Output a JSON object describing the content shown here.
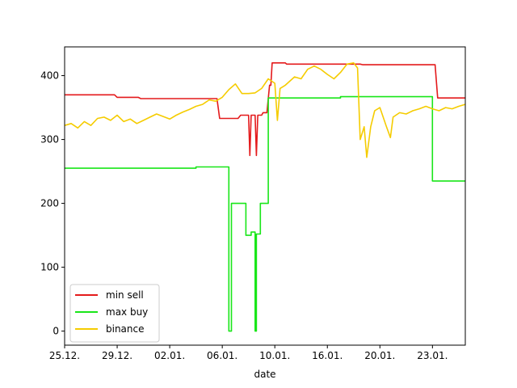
{
  "chart_data": {
    "type": "line",
    "title": "",
    "xlabel": "date",
    "ylabel": "",
    "x_ticks": [
      "25.12.",
      "29.12.",
      "02.01.",
      "06.01.",
      "10.01.",
      "16.01.",
      "20.01.",
      "23.01."
    ],
    "x_tick_values": [
      0,
      4,
      8,
      12,
      16,
      20,
      24,
      28
    ],
    "xlim": [
      0,
      30.5
    ],
    "y_ticks": [
      "0",
      "100",
      "200",
      "300",
      "400"
    ],
    "ylim": [
      -22,
      445
    ],
    "grid": false,
    "legend_position": "lower-left",
    "x_unit_note": "x values are days after 25.12.",
    "series": [
      {
        "name": "min sell",
        "color": "#e41a1c",
        "style": "step",
        "points": [
          [
            0,
            370
          ],
          [
            3.8,
            370
          ],
          [
            4.0,
            366
          ],
          [
            5.6,
            366
          ],
          [
            5.8,
            364
          ],
          [
            11.6,
            364
          ],
          [
            11.8,
            333
          ],
          [
            13.2,
            333
          ],
          [
            13.4,
            338
          ],
          [
            14.0,
            338
          ],
          [
            14.1,
            275
          ],
          [
            14.2,
            338
          ],
          [
            14.5,
            338
          ],
          [
            14.6,
            275
          ],
          [
            14.7,
            338
          ],
          [
            15.0,
            338
          ],
          [
            15.1,
            342
          ],
          [
            15.4,
            342
          ],
          [
            15.6,
            385
          ],
          [
            15.7,
            385
          ],
          [
            15.8,
            420
          ],
          [
            16.8,
            420
          ],
          [
            16.9,
            418
          ],
          [
            22.5,
            418
          ],
          [
            22.7,
            417
          ],
          [
            28.2,
            417
          ],
          [
            28.4,
            365
          ],
          [
            30.5,
            365
          ]
        ]
      },
      {
        "name": "max buy",
        "color": "#19e619",
        "style": "step",
        "points": [
          [
            0,
            255
          ],
          [
            10.0,
            255
          ],
          [
            10.0,
            257
          ],
          [
            12.5,
            257
          ],
          [
            12.5,
            0
          ],
          [
            12.7,
            0
          ],
          [
            12.7,
            200
          ],
          [
            13.8,
            200
          ],
          [
            13.8,
            150
          ],
          [
            14.2,
            150
          ],
          [
            14.2,
            155
          ],
          [
            14.5,
            155
          ],
          [
            14.5,
            0
          ],
          [
            14.6,
            0
          ],
          [
            14.6,
            152
          ],
          [
            14.9,
            152
          ],
          [
            14.9,
            200
          ],
          [
            15.5,
            200
          ],
          [
            15.5,
            365
          ],
          [
            21.0,
            365
          ],
          [
            21.0,
            367
          ],
          [
            28.0,
            367
          ],
          [
            28.0,
            235
          ],
          [
            30.5,
            235
          ]
        ]
      },
      {
        "name": "binance",
        "color": "#f5cc00",
        "style": "line",
        "points": [
          [
            0,
            322
          ],
          [
            0.5,
            325
          ],
          [
            1.0,
            318
          ],
          [
            1.5,
            328
          ],
          [
            2.0,
            322
          ],
          [
            2.5,
            333
          ],
          [
            3.0,
            335
          ],
          [
            3.5,
            330
          ],
          [
            4.0,
            338
          ],
          [
            4.5,
            328
          ],
          [
            5.0,
            332
          ],
          [
            5.5,
            325
          ],
          [
            6.0,
            330
          ],
          [
            6.5,
            335
          ],
          [
            7.0,
            340
          ],
          [
            7.5,
            336
          ],
          [
            8.0,
            332
          ],
          [
            8.5,
            338
          ],
          [
            9.0,
            343
          ],
          [
            9.5,
            347
          ],
          [
            10.0,
            352
          ],
          [
            10.5,
            355
          ],
          [
            11.0,
            362
          ],
          [
            11.5,
            360
          ],
          [
            12.0,
            366
          ],
          [
            12.5,
            378
          ],
          [
            13.0,
            387
          ],
          [
            13.5,
            372
          ],
          [
            14.0,
            372
          ],
          [
            14.5,
            373
          ],
          [
            15.0,
            380
          ],
          [
            15.5,
            395
          ],
          [
            16.0,
            388
          ],
          [
            16.2,
            330
          ],
          [
            16.4,
            380
          ],
          [
            16.8,
            385
          ],
          [
            17.5,
            398
          ],
          [
            18.0,
            395
          ],
          [
            18.5,
            410
          ],
          [
            19.0,
            415
          ],
          [
            19.5,
            410
          ],
          [
            20.0,
            402
          ],
          [
            20.5,
            395
          ],
          [
            21.0,
            405
          ],
          [
            21.5,
            418
          ],
          [
            22.0,
            420
          ],
          [
            22.3,
            412
          ],
          [
            22.5,
            300
          ],
          [
            22.8,
            320
          ],
          [
            23.0,
            272
          ],
          [
            23.3,
            320
          ],
          [
            23.6,
            345
          ],
          [
            24.0,
            350
          ],
          [
            24.5,
            320
          ],
          [
            24.8,
            303
          ],
          [
            25.0,
            335
          ],
          [
            25.5,
            342
          ],
          [
            26.0,
            340
          ],
          [
            26.5,
            345
          ],
          [
            27.0,
            348
          ],
          [
            27.5,
            352
          ],
          [
            28.0,
            348
          ],
          [
            28.5,
            345
          ],
          [
            29.0,
            350
          ],
          [
            29.5,
            348
          ],
          [
            30.0,
            352
          ],
          [
            30.5,
            355
          ]
        ]
      }
    ]
  }
}
